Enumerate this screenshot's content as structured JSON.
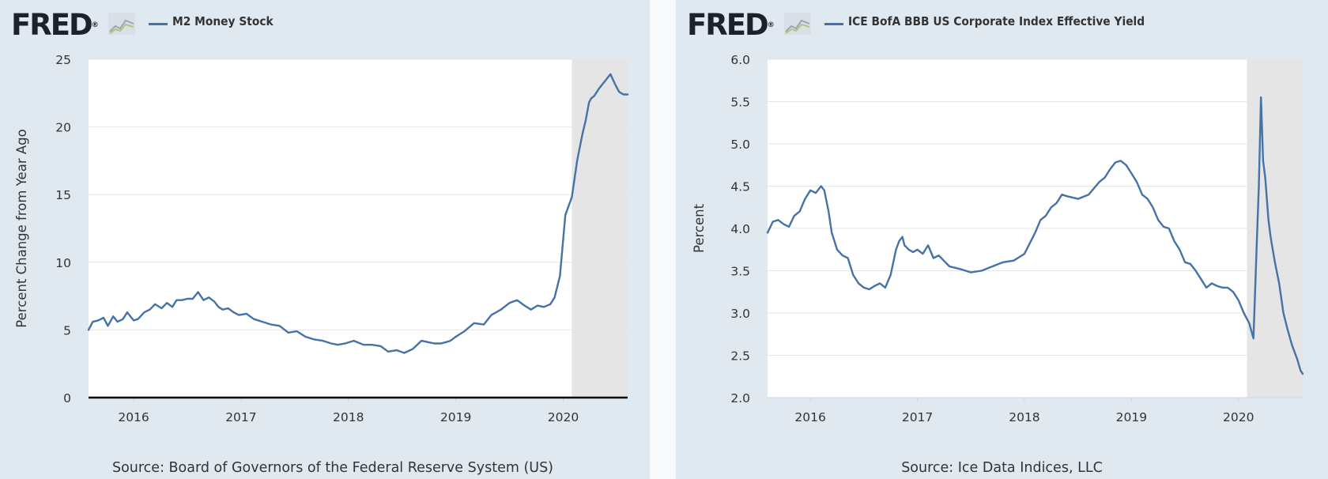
{
  "colors": {
    "series": "#4572a7",
    "background": "#e1e9f0",
    "plot": "#ffffff",
    "recession": "#e5e5e5",
    "grid": "#e6e6e6"
  },
  "logo": {
    "text": "FRED",
    "reg": "®",
    "icon": "fred-mini-graph-icon"
  },
  "charts": [
    {
      "source": "Source: Board of Governors of the Federal Reserve System (US)"
    },
    {
      "source": "Source: Ice Data Indices, LLC"
    }
  ],
  "chart_data": [
    {
      "type": "line",
      "title": "",
      "legend": "M2 Money Stock",
      "xlabel": "",
      "ylabel": "Percent Change from Year Ago",
      "xlim": [
        2015.58,
        2020.6
      ],
      "ylim": [
        0,
        25
      ],
      "yticks": [
        "0",
        "5",
        "10",
        "15",
        "20",
        "25"
      ],
      "xticks": [
        "2016",
        "2017",
        "2018",
        "2019",
        "2020"
      ],
      "recession": [
        2020.08,
        2020.6
      ],
      "grid": true,
      "series": [
        {
          "name": "M2 Money Stock",
          "x": [
            2015.58,
            2015.62,
            2015.67,
            2015.72,
            2015.76,
            2015.81,
            2015.85,
            2015.9,
            2015.94,
            2016.0,
            2016.04,
            2016.1,
            2016.15,
            2016.2,
            2016.26,
            2016.31,
            2016.36,
            2016.4,
            2016.45,
            2016.5,
            2016.55,
            2016.6,
            2016.65,
            2016.7,
            2016.75,
            2016.79,
            2016.83,
            2016.88,
            2016.93,
            2016.98,
            2017.05,
            2017.12,
            2017.2,
            2017.28,
            2017.36,
            2017.44,
            2017.52,
            2017.6,
            2017.68,
            2017.76,
            2017.84,
            2017.9,
            2017.97,
            2018.05,
            2018.14,
            2018.22,
            2018.3,
            2018.37,
            2018.45,
            2018.52,
            2018.6,
            2018.68,
            2018.74,
            2018.8,
            2018.86,
            2018.91,
            2018.95,
            2019.0,
            2019.08,
            2019.17,
            2019.26,
            2019.33,
            2019.42,
            2019.5,
            2019.57,
            2019.64,
            2019.7,
            2019.76,
            2019.82,
            2019.88,
            2019.92,
            2019.97,
            2020.02,
            2020.08,
            2020.13,
            2020.18,
            2020.21,
            2020.24,
            2020.26,
            2020.29,
            2020.33,
            2020.36,
            2020.4,
            2020.44,
            2020.48,
            2020.52,
            2020.56,
            2020.6
          ],
          "values": [
            5.0,
            5.6,
            5.7,
            5.9,
            5.3,
            6.0,
            5.6,
            5.8,
            6.3,
            5.7,
            5.8,
            6.3,
            6.5,
            6.9,
            6.6,
            7.0,
            6.7,
            7.2,
            7.2,
            7.3,
            7.3,
            7.8,
            7.2,
            7.4,
            7.1,
            6.7,
            6.5,
            6.6,
            6.3,
            6.1,
            6.2,
            5.8,
            5.6,
            5.4,
            5.3,
            4.8,
            4.9,
            4.5,
            4.3,
            4.2,
            4.0,
            3.9,
            4.0,
            4.2,
            3.9,
            3.9,
            3.8,
            3.4,
            3.5,
            3.3,
            3.6,
            4.2,
            4.1,
            4.0,
            4.0,
            4.1,
            4.2,
            4.5,
            4.9,
            5.5,
            5.4,
            6.1,
            6.5,
            7.0,
            7.2,
            6.8,
            6.5,
            6.8,
            6.7,
            6.9,
            7.4,
            9.0,
            13.5,
            14.8,
            17.5,
            19.5,
            20.5,
            21.8,
            22.1,
            22.3,
            22.8,
            23.1,
            23.5,
            23.9,
            23.2,
            22.6,
            22.4,
            22.4
          ]
        }
      ]
    },
    {
      "type": "line",
      "title": "",
      "legend": "ICE BofA BBB US Corporate Index Effective Yield",
      "xlabel": "",
      "ylabel": "Percent",
      "xlim": [
        2015.6,
        2020.6
      ],
      "ylim": [
        2.0,
        6.0
      ],
      "yticks": [
        "2.0",
        "2.5",
        "3.0",
        "3.5",
        "4.0",
        "4.5",
        "5.0",
        "5.5",
        "6.0"
      ],
      "xticks": [
        "2016",
        "2017",
        "2018",
        "2019",
        "2020"
      ],
      "recession": [
        2020.08,
        2020.6
      ],
      "grid": true,
      "series": [
        {
          "name": "ICE BofA BBB US Corporate Index Effective Yield",
          "x": [
            2015.6,
            2015.65,
            2015.7,
            2015.75,
            2015.8,
            2015.85,
            2015.9,
            2015.95,
            2016.0,
            2016.05,
            2016.1,
            2016.13,
            2016.17,
            2016.2,
            2016.25,
            2016.3,
            2016.35,
            2016.4,
            2016.45,
            2016.5,
            2016.55,
            2016.6,
            2016.65,
            2016.7,
            2016.75,
            2016.8,
            2016.83,
            2016.86,
            2016.88,
            2016.92,
            2016.96,
            2017.0,
            2017.05,
            2017.1,
            2017.15,
            2017.2,
            2017.3,
            2017.4,
            2017.5,
            2017.6,
            2017.7,
            2017.8,
            2017.9,
            2018.0,
            2018.1,
            2018.15,
            2018.2,
            2018.25,
            2018.3,
            2018.35,
            2018.4,
            2018.5,
            2018.6,
            2018.7,
            2018.75,
            2018.8,
            2018.85,
            2018.9,
            2018.95,
            2019.0,
            2019.05,
            2019.1,
            2019.15,
            2019.2,
            2019.25,
            2019.3,
            2019.35,
            2019.4,
            2019.45,
            2019.5,
            2019.55,
            2019.6,
            2019.65,
            2019.7,
            2019.75,
            2019.8,
            2019.85,
            2019.9,
            2019.95,
            2020.0,
            2020.05,
            2020.1,
            2020.14,
            2020.17,
            2020.19,
            2020.21,
            2020.23,
            2020.25,
            2020.28,
            2020.3,
            2020.34,
            2020.38,
            2020.42,
            2020.46,
            2020.5,
            2020.55,
            2020.58,
            2020.6
          ],
          "values": [
            3.95,
            4.08,
            4.1,
            4.05,
            4.02,
            4.15,
            4.2,
            4.35,
            4.45,
            4.42,
            4.5,
            4.45,
            4.2,
            3.95,
            3.75,
            3.68,
            3.65,
            3.45,
            3.35,
            3.3,
            3.28,
            3.32,
            3.35,
            3.3,
            3.45,
            3.75,
            3.85,
            3.9,
            3.8,
            3.75,
            3.72,
            3.75,
            3.7,
            3.8,
            3.65,
            3.68,
            3.55,
            3.52,
            3.48,
            3.5,
            3.55,
            3.6,
            3.62,
            3.7,
            3.95,
            4.1,
            4.15,
            4.25,
            4.3,
            4.4,
            4.38,
            4.35,
            4.4,
            4.55,
            4.6,
            4.7,
            4.78,
            4.8,
            4.75,
            4.65,
            4.55,
            4.4,
            4.35,
            4.25,
            4.1,
            4.02,
            4.0,
            3.85,
            3.75,
            3.6,
            3.58,
            3.5,
            3.4,
            3.3,
            3.35,
            3.32,
            3.3,
            3.3,
            3.25,
            3.15,
            3.0,
            2.88,
            2.7,
            3.8,
            4.5,
            5.55,
            4.8,
            4.6,
            4.1,
            3.9,
            3.6,
            3.35,
            3.0,
            2.8,
            2.62,
            2.45,
            2.32,
            2.28
          ]
        }
      ]
    }
  ]
}
